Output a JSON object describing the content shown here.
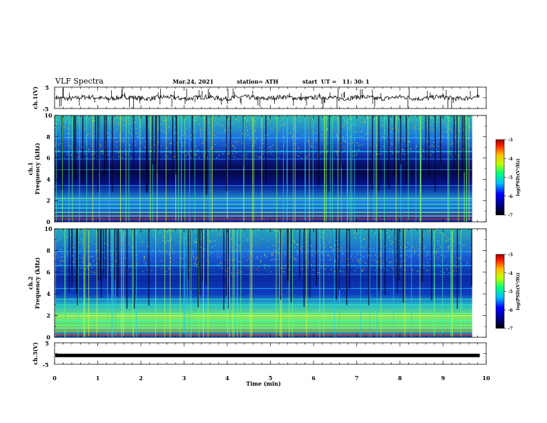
{
  "header": {
    "title": "VLF Spectra",
    "date": "Mar.24, 2021",
    "station": "station= ATH",
    "start": "start  UT =   11: 30: 1"
  },
  "chart_data": [
    {
      "type": "line",
      "panel": "waveform-ch1",
      "ylabel": "ch.1(V)",
      "yticks": [
        "5",
        "-5"
      ],
      "ylim": [
        -5,
        5
      ],
      "xlim": [
        0,
        10
      ],
      "note": "continuous waveform near 0 V with impulsive spikes"
    },
    {
      "type": "heatmap",
      "panel": "spectrogram-ch1",
      "ylabel_line1": "ch.1",
      "ylabel_line2": "Frequency (kHz)",
      "yticks": [
        "0",
        "2",
        "4",
        "6",
        "8",
        "10"
      ],
      "ylim": [
        0,
        10
      ],
      "xlim": [
        0,
        9.85
      ],
      "colorbar": {
        "label": "log(PSD)(V²/Hz)",
        "ticks": [
          "-3",
          "-4",
          "-5",
          "-6",
          "-7"
        ],
        "range": [
          -7,
          -3
        ]
      }
    },
    {
      "type": "heatmap",
      "panel": "spectrogram-ch2",
      "ylabel_line1": "ch.2",
      "ylabel_line2": "Frequency (kHz)",
      "yticks": [
        "0",
        "2",
        "4",
        "6",
        "8",
        "10"
      ],
      "ylim": [
        0,
        10
      ],
      "xlim": [
        0,
        9.85
      ],
      "colorbar": {
        "label": "log(PSD)(V²/Hz)",
        "ticks": [
          "-3",
          "-4",
          "-5",
          "-6",
          "-7"
        ],
        "range": [
          -7,
          -3
        ]
      }
    },
    {
      "type": "line",
      "panel": "waveform-ch3",
      "ylabel": "ch.3(V)",
      "yticks": [
        "5",
        "-5"
      ],
      "ylim": [
        -5,
        5
      ],
      "xlim": [
        0,
        10
      ],
      "note": "flat level slightly below 0 V"
    }
  ],
  "xaxis": {
    "label": "Time (min)",
    "ticks": [
      "0",
      "1",
      "2",
      "3",
      "4",
      "5",
      "6",
      "7",
      "8",
      "9",
      "10"
    ],
    "range": [
      0,
      10
    ]
  }
}
